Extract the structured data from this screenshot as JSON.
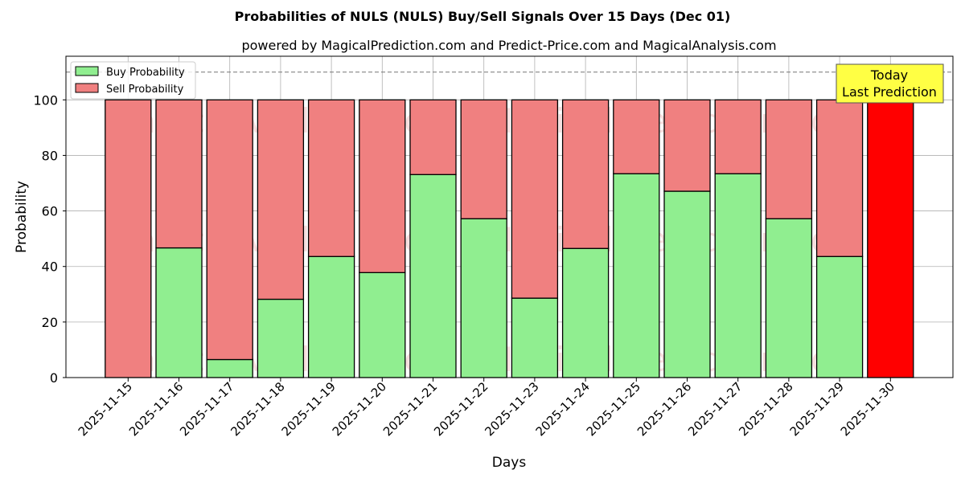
{
  "chart_data": {
    "type": "bar",
    "stacked": true,
    "title": "Probabilities of NULS (NULS) Buy/Sell Signals Over 15 Days (Dec 01)",
    "subtitle": "powered by MagicalPrediction.com and Predict-Price.com and MagicalAnalysis.com",
    "xlabel": "Days",
    "ylabel": "Probability",
    "ylim": [
      0,
      115
    ],
    "yticks": [
      0,
      20,
      40,
      60,
      80,
      100
    ],
    "reference_line": 110,
    "grid": true,
    "legend_placement": "top-left",
    "categories": [
      "2025-11-15",
      "2025-11-16",
      "2025-11-17",
      "2025-11-18",
      "2025-11-19",
      "2025-11-20",
      "2025-11-21",
      "2025-11-22",
      "2025-11-23",
      "2025-11-24",
      "2025-11-25",
      "2025-11-26",
      "2025-11-27",
      "2025-11-28",
      "2025-11-29",
      "2025-11-30"
    ],
    "series": [
      {
        "name": "Buy Probability",
        "color": "#90ee90",
        "values": [
          0,
          46.7,
          6.5,
          28.2,
          43.6,
          37.8,
          73.1,
          57.2,
          28.6,
          46.5,
          73.4,
          67.1,
          73.4,
          57.2,
          43.6,
          0
        ]
      },
      {
        "name": "Sell Probability",
        "color": "#f08080",
        "values": [
          100,
          53.3,
          93.5,
          71.8,
          56.4,
          62.2,
          26.9,
          42.8,
          71.4,
          53.5,
          26.6,
          32.9,
          26.6,
          42.8,
          56.4,
          100
        ]
      }
    ],
    "highlight": {
      "index": 15,
      "color": "#ff0000"
    },
    "annotation": {
      "line1": "Today",
      "line2": "Last Prediction",
      "color": "#ffff44"
    },
    "watermarks": [
      "MagicalAnalysis.com",
      "MagicalPrediction.com"
    ]
  }
}
